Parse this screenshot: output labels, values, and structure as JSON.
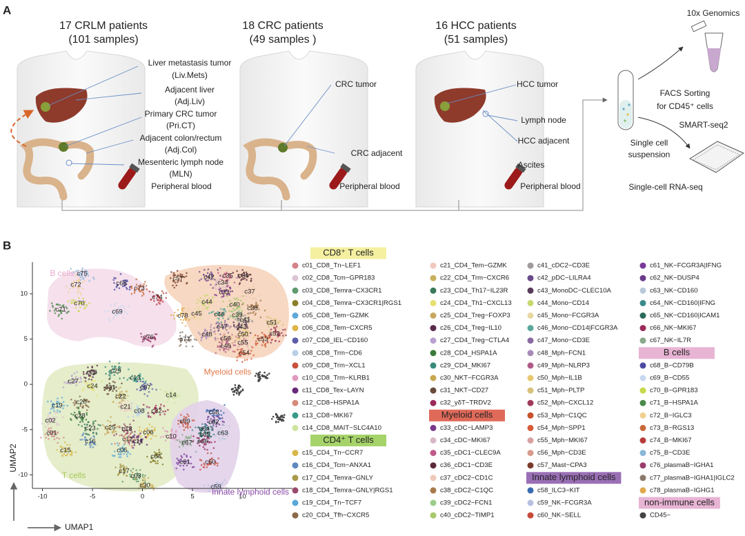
{
  "panel_a": {
    "label": "A",
    "cohorts": [
      {
        "title": "17 CRLM patients",
        "subtitle": "(101 samples)",
        "sites": [
          "Liver metastasis tumor",
          "(Liv.Mets)",
          "Adjacent liver",
          "(Adj.Liv)",
          "Primary CRC tumor",
          "(Pri.CT)",
          "Adjacent colon/rectum",
          "(Adj.Col)",
          "Mesenteric lymph node",
          "(MLN)",
          "Peripheral blood"
        ]
      },
      {
        "title": "18 CRC patients",
        "subtitle": "(49 samples )",
        "sites": [
          "CRC tumor",
          "CRC adjacent",
          "Peripheral blood"
        ]
      },
      {
        "title": "16 HCC patients",
        "subtitle": "(51 samples)",
        "sites": [
          "HCC tumor",
          "Lymph node",
          "HCC adjacent",
          "Ascites",
          "Peripheral blood"
        ]
      }
    ],
    "workflow": [
      "10x Genomics",
      "FACS Sorting",
      "for CD45⁺ cells",
      "SMART-seq2",
      "Single cell",
      "suspension",
      "Single-cell RNA-seq"
    ]
  },
  "panel_b": {
    "label": "B",
    "umap": {
      "x_label": "UMAP1",
      "y_label": "UMAP2",
      "xlim": [
        -11,
        15
      ],
      "ylim": [
        -11.5,
        13.5
      ],
      "xticks": [
        -10,
        -5,
        0,
        5,
        10
      ],
      "yticks": [
        -10,
        -5,
        0,
        5,
        10
      ],
      "regions": [
        {
          "name": "B cells",
          "color": "#e9a9cf"
        },
        {
          "name": "Myeloid cells",
          "color": "#e0784a"
        },
        {
          "name": "T cells",
          "color": "#a9c95a"
        },
        {
          "name": "Innate lymphoid cells",
          "color": "#8a4aa8"
        }
      ],
      "clusters": [
        "c75",
        "c72",
        "c68",
        "c70",
        "c71",
        "c69",
        "c73",
        "c74",
        "c78",
        "c76",
        "c77",
        "c57",
        "c42",
        "c35",
        "c36",
        "c34",
        "c33",
        "c37",
        "c44",
        "c40",
        "c38",
        "c45",
        "c46",
        "c39",
        "c41",
        "c51",
        "c43",
        "c47",
        "c48",
        "c56",
        "c50",
        "c52",
        "c49",
        "c55",
        "c53",
        "c54",
        "c26",
        "c29",
        "c13",
        "c27",
        "c24",
        "c31",
        "c07",
        "c14",
        "c20",
        "c22",
        "c19",
        "c21",
        "c08",
        "c32",
        "c28",
        "c09",
        "c58",
        "c62",
        "c02",
        "c23",
        "c25",
        "c18",
        "c12",
        "c06",
        "c64",
        "c65",
        "c63",
        "c01",
        "c16",
        "c11",
        "c10",
        "c67",
        "c66",
        "c15",
        "c05",
        "c04",
        "c61",
        "c60",
        "c17",
        "c03",
        "c30",
        "c59"
      ]
    },
    "legend": {
      "groups": [
        {
          "title": "CD8⁺ T cells",
          "color": "#f4f0a0",
          "items": [
            {
              "name": "c01_CD8_Tn−LEF1",
              "color": "#d4838a"
            },
            {
              "name": "c02_CD8_Tcm−GPR183",
              "color": "#dcc4d2"
            },
            {
              "name": "c03_CD8_Temra−CX3CR1",
              "color": "#5f9a6e"
            },
            {
              "name": "c04_CD8_Temra−CX3CR1|RGS1",
              "color": "#8a7e2a"
            },
            {
              "name": "c05_CD8_Tem−GZMK",
              "color": "#5fa8d8"
            },
            {
              "name": "c06_CD8_Tem−CXCR5",
              "color": "#e0b64a"
            },
            {
              "name": "c07_CD8_IEL−CD160",
              "color": "#5e5ea8"
            },
            {
              "name": "c08_CD8_Trm−CD6",
              "color": "#b8d0e8"
            },
            {
              "name": "c09_CD8_Trm−XCL1",
              "color": "#c8503a"
            },
            {
              "name": "c10_CD8_Trm−KLRB1",
              "color": "#e09ac0"
            },
            {
              "name": "c11_CD8_Tex−LAYN",
              "color": "#6a2a7a"
            },
            {
              "name": "c12_CD8−HSPA1A",
              "color": "#d78a7a"
            },
            {
              "name": "c13_CD8−MKI67",
              "color": "#3a9a8a"
            },
            {
              "name": "c14_CD8_MAIT−SLC4A10",
              "color": "#cfe3a0"
            }
          ]
        },
        {
          "title": "CD4⁺ T cells",
          "color": "#a5d36a",
          "items": [
            {
              "name": "c15_CD4_Tn−CCR7",
              "color": "#d8b84a"
            },
            {
              "name": "c16_CD4_Tcm−ANXA1",
              "color": "#5e8ac0"
            },
            {
              "name": "c17_CD4_Temra−GNLY",
              "color": "#a89a4a"
            },
            {
              "name": "c18_CD4_Temra−GNLY|RGS1",
              "color": "#9a4a6a"
            },
            {
              "name": "c19_CD4_Tn−TCF7",
              "color": "#5aa8d8"
            },
            {
              "name": "c20_CD4_Tfh−CXCR5",
              "color": "#8a6a4a"
            },
            {
              "name": "c21_CD4_Tem−GZMK",
              "color": "#f0c8c0"
            },
            {
              "name": "c22_CD4_Trm−CXCR6",
              "color": "#c8b060"
            },
            {
              "name": "c23_CD4_Th17−IL23R",
              "color": "#3a7a5a"
            },
            {
              "name": "c24_CD4_Th1−CXCL13",
              "color": "#e8e070"
            },
            {
              "name": "c25_CD4_Treg−FOXP3",
              "color": "#c8a860"
            },
            {
              "name": "c26_CD4_Treg−IL10",
              "color": "#5a2a4a"
            },
            {
              "name": "c27_CD4_Treg−CTLA4",
              "color": "#b8a0d0"
            },
            {
              "name": "c28_CD4_HSPA1A",
              "color": "#3a7a3a"
            },
            {
              "name": "c29_CD4_MKI67",
              "color": "#3a8a7a"
            },
            {
              "name": "c30_NKT−FCGR3A",
              "color": "#c8a850"
            },
            {
              "name": "c31_NKT−CD27",
              "color": "#6a4a3a"
            },
            {
              "name": "c32_γδT−TRDV2",
              "color": "#9a2a5a"
            }
          ]
        },
        {
          "title": "Myeloid cells",
          "color": "#e06a5a",
          "items": [
            {
              "name": "c33_cDC−LAMP3",
              "color": "#7a3a8a"
            },
            {
              "name": "c34_cDC−MKI67",
              "color": "#d8b8c8"
            },
            {
              "name": "c35_cDC1−CLEC9A",
              "color": "#c05a8a"
            },
            {
              "name": "c36_cDC1−CD3E",
              "color": "#5a2a3a"
            },
            {
              "name": "c37_cDC2−CD1C",
              "color": "#f0c8b8"
            },
            {
              "name": "c38_cDC2−C1QC",
              "color": "#a87a4a"
            },
            {
              "name": "c39_cDC2−FCN1",
              "color": "#9acd8a"
            },
            {
              "name": "c40_cDC2−TIMP1",
              "color": "#a8c86a"
            },
            {
              "name": "c41_cDC2−CD3E",
              "color": "#a09a9a"
            },
            {
              "name": "c42_pDC−LILRA4",
              "color": "#6a4a8a"
            },
            {
              "name": "c43_MonoDC−CLEC10A",
              "color": "#5a3a5a"
            },
            {
              "name": "c44_Mono−CD14",
              "color": "#c8d870"
            },
            {
              "name": "c45_Mono−FCGR3A",
              "color": "#e8d8a0"
            },
            {
              "name": "c46_Mono−CD14|FCGR3A",
              "color": "#5aa89a"
            },
            {
              "name": "c47_Mono−CD3E",
              "color": "#8a6aa0"
            },
            {
              "name": "c48_Mph−FCN1",
              "color": "#a88ab8"
            },
            {
              "name": "c49_Mph−NLRP3",
              "color": "#b05a8a"
            },
            {
              "name": "c50_Mph−IL1B",
              "color": "#e8c870"
            },
            {
              "name": "c51_Mph−PLTP",
              "color": "#d8c07a"
            },
            {
              "name": "c52_Mph−CXCL12",
              "color": "#a03a5a"
            },
            {
              "name": "c53_Mph−C1QC",
              "color": "#c8502a"
            },
            {
              "name": "c54_Mph−SPP1",
              "color": "#d85a3a"
            },
            {
              "name": "c55_Mph−MKI67",
              "color": "#d8a0a0"
            },
            {
              "name": "c56_Mph−CD3E",
              "color": "#d89a8a"
            },
            {
              "name": "c57_Mast−CPA3",
              "color": "#7a3a2a"
            }
          ]
        },
        {
          "title": "Innate lymphoid cells",
          "color": "#9a6fb5",
          "items": [
            {
              "name": "c58_ILC3−KIT",
              "color": "#3a6ab0"
            },
            {
              "name": "c59_NK−FCGR3A",
              "color": "#b8c0e0"
            },
            {
              "name": "c60_NK−SELL",
              "color": "#c84a3a"
            },
            {
              "name": "c61_NK−FCGR3A|IFNG",
              "color": "#7a3a9a"
            },
            {
              "name": "c62_NK−DUSP4",
              "color": "#6a3a8a"
            },
            {
              "name": "c63_NK−CD160",
              "color": "#b8c8d8"
            },
            {
              "name": "c64_NK−CD160|IFNG",
              "color": "#3a8a8a"
            },
            {
              "name": "c65_NK−CD160|ICAM1",
              "color": "#2a6a5a"
            },
            {
              "name": "c66_NK−MKI67",
              "color": "#9a2a5a"
            },
            {
              "name": "c67_NK−IL7R",
              "color": "#8aa88a"
            }
          ]
        },
        {
          "title": "B cells",
          "color": "#e8b4d4",
          "items": [
            {
              "name": "c68_B−CD79B",
              "color": "#4a4aa0"
            },
            {
              "name": "c69_B−CD55",
              "color": "#c8d8f0"
            },
            {
              "name": "c70_B−GPR183",
              "color": "#c8d84a"
            },
            {
              "name": "c71_B−HSPA1A",
              "color": "#4a8a4a"
            },
            {
              "name": "c72_B−IGLC3",
              "color": "#f0d090"
            },
            {
              "name": "c73_B−RGS13",
              "color": "#c86a3a"
            },
            {
              "name": "c74_B−MKI67",
              "color": "#b83a3a"
            },
            {
              "name": "c75_B−CD3E",
              "color": "#8ab8d8"
            },
            {
              "name": "c76_plasmaB−IGHA1",
              "color": "#9a3a6a"
            },
            {
              "name": "c77_plasmaB−IGHA1|IGLC2",
              "color": "#8a7a6a"
            },
            {
              "name": "c78_plasmaB−IGHG1",
              "color": "#e0a84a"
            }
          ]
        },
        {
          "title": "non-immune cells",
          "color": "#e8b4d4",
          "items": [
            {
              "name": "CD45−",
              "color": "#444444"
            }
          ]
        }
      ]
    }
  }
}
